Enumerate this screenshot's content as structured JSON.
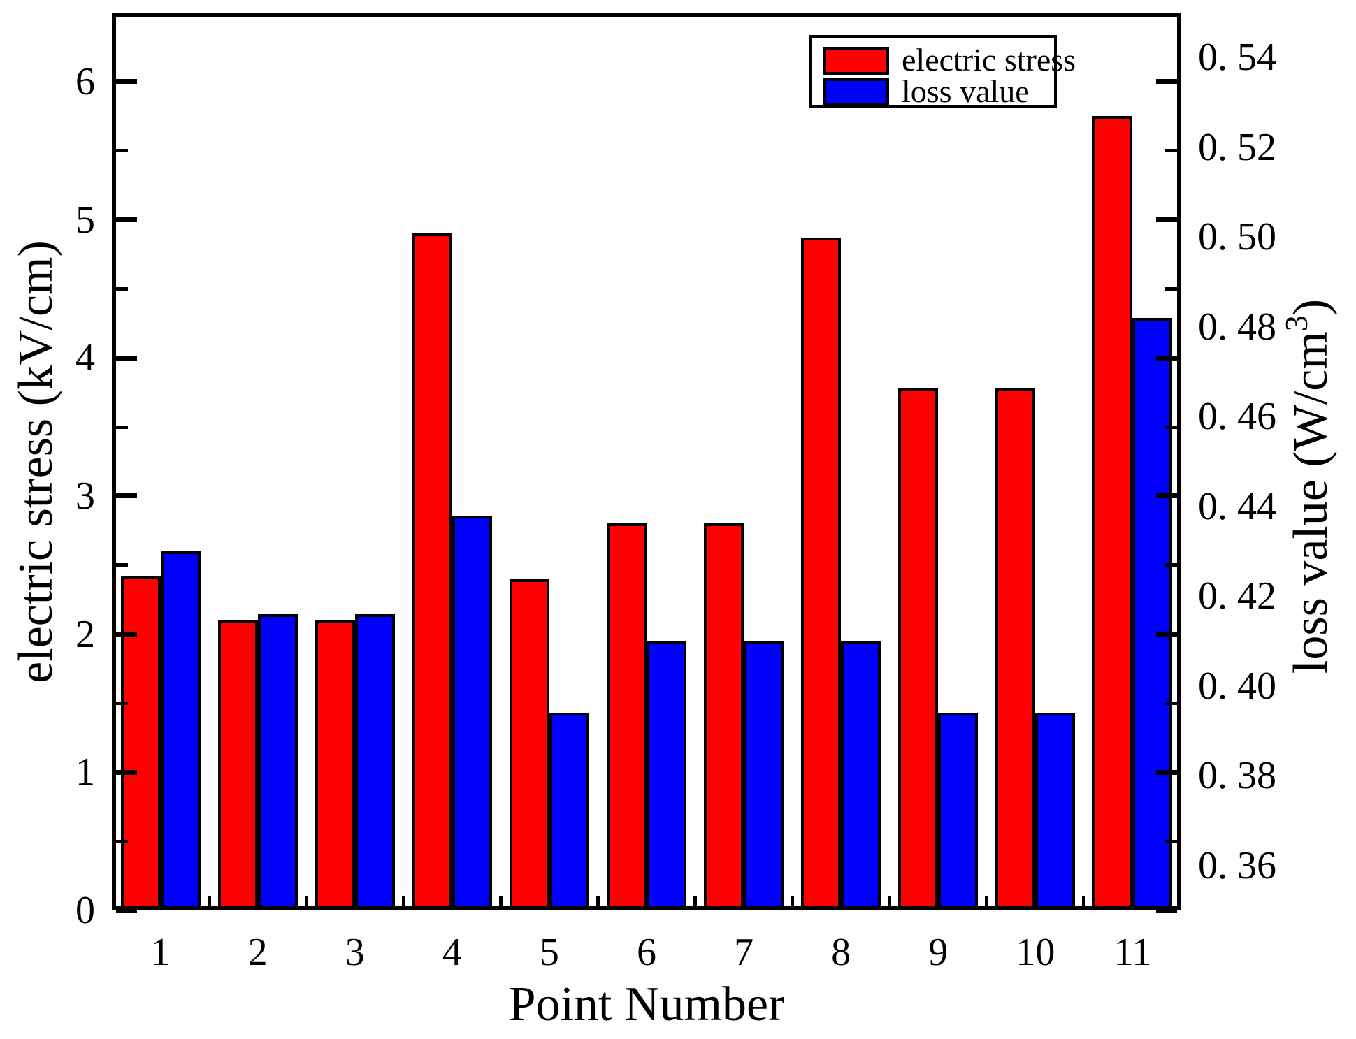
{
  "colors": {
    "red": "#FF0000",
    "blue": "#0000FF",
    "axis": "#000000",
    "background": "#FFFFFF"
  },
  "legend": {
    "entries": [
      {
        "label": "electric stress",
        "color": "#FF0000"
      },
      {
        "label": "loss value",
        "color": "#0000FF"
      }
    ]
  },
  "chart_data": {
    "type": "bar",
    "title": "",
    "categories": [
      "1",
      "2",
      "3",
      "4",
      "5",
      "6",
      "7",
      "8",
      "9",
      "10",
      "11"
    ],
    "series": [
      {
        "name": "electric stress",
        "axis": "left",
        "color": "#FF0000",
        "values": [
          2.42,
          2.1,
          2.1,
          4.9,
          2.4,
          2.8,
          2.8,
          4.87,
          3.78,
          3.78,
          5.75
        ]
      },
      {
        "name": "loss value",
        "axis": "right",
        "color": "#0000FF",
        "values": [
          0.43,
          0.416,
          0.416,
          0.438,
          0.394,
          0.41,
          0.41,
          0.41,
          0.394,
          0.394,
          0.482
        ]
      }
    ],
    "x_axis": {
      "label": "Point Number"
    },
    "left_axis": {
      "label": "electric stress (kV/cm)",
      "range": [
        0,
        6.5
      ],
      "major_tick_values": [
        0,
        1,
        2,
        3,
        4,
        5,
        6
      ],
      "major_tick_labels": [
        "0",
        "1",
        "2",
        "3",
        "4",
        "5",
        "6"
      ],
      "minor_step": 0.5
    },
    "right_axis": {
      "label_main": "loss value (W/cm",
      "label_sup": "3",
      "label_end": ")",
      "range": [
        0.35,
        0.55
      ],
      "tick_values": [
        0.36,
        0.38,
        0.4,
        0.42,
        0.44,
        0.46,
        0.48,
        0.5,
        0.52,
        0.54
      ],
      "tick_labels": [
        "0. 36",
        "0. 38",
        "0. 40",
        "0. 42",
        "0. 44",
        "0. 46",
        "0. 48",
        "0. 50",
        "0. 52",
        "0. 54"
      ]
    },
    "legend_position": "top-right",
    "grid": false
  }
}
